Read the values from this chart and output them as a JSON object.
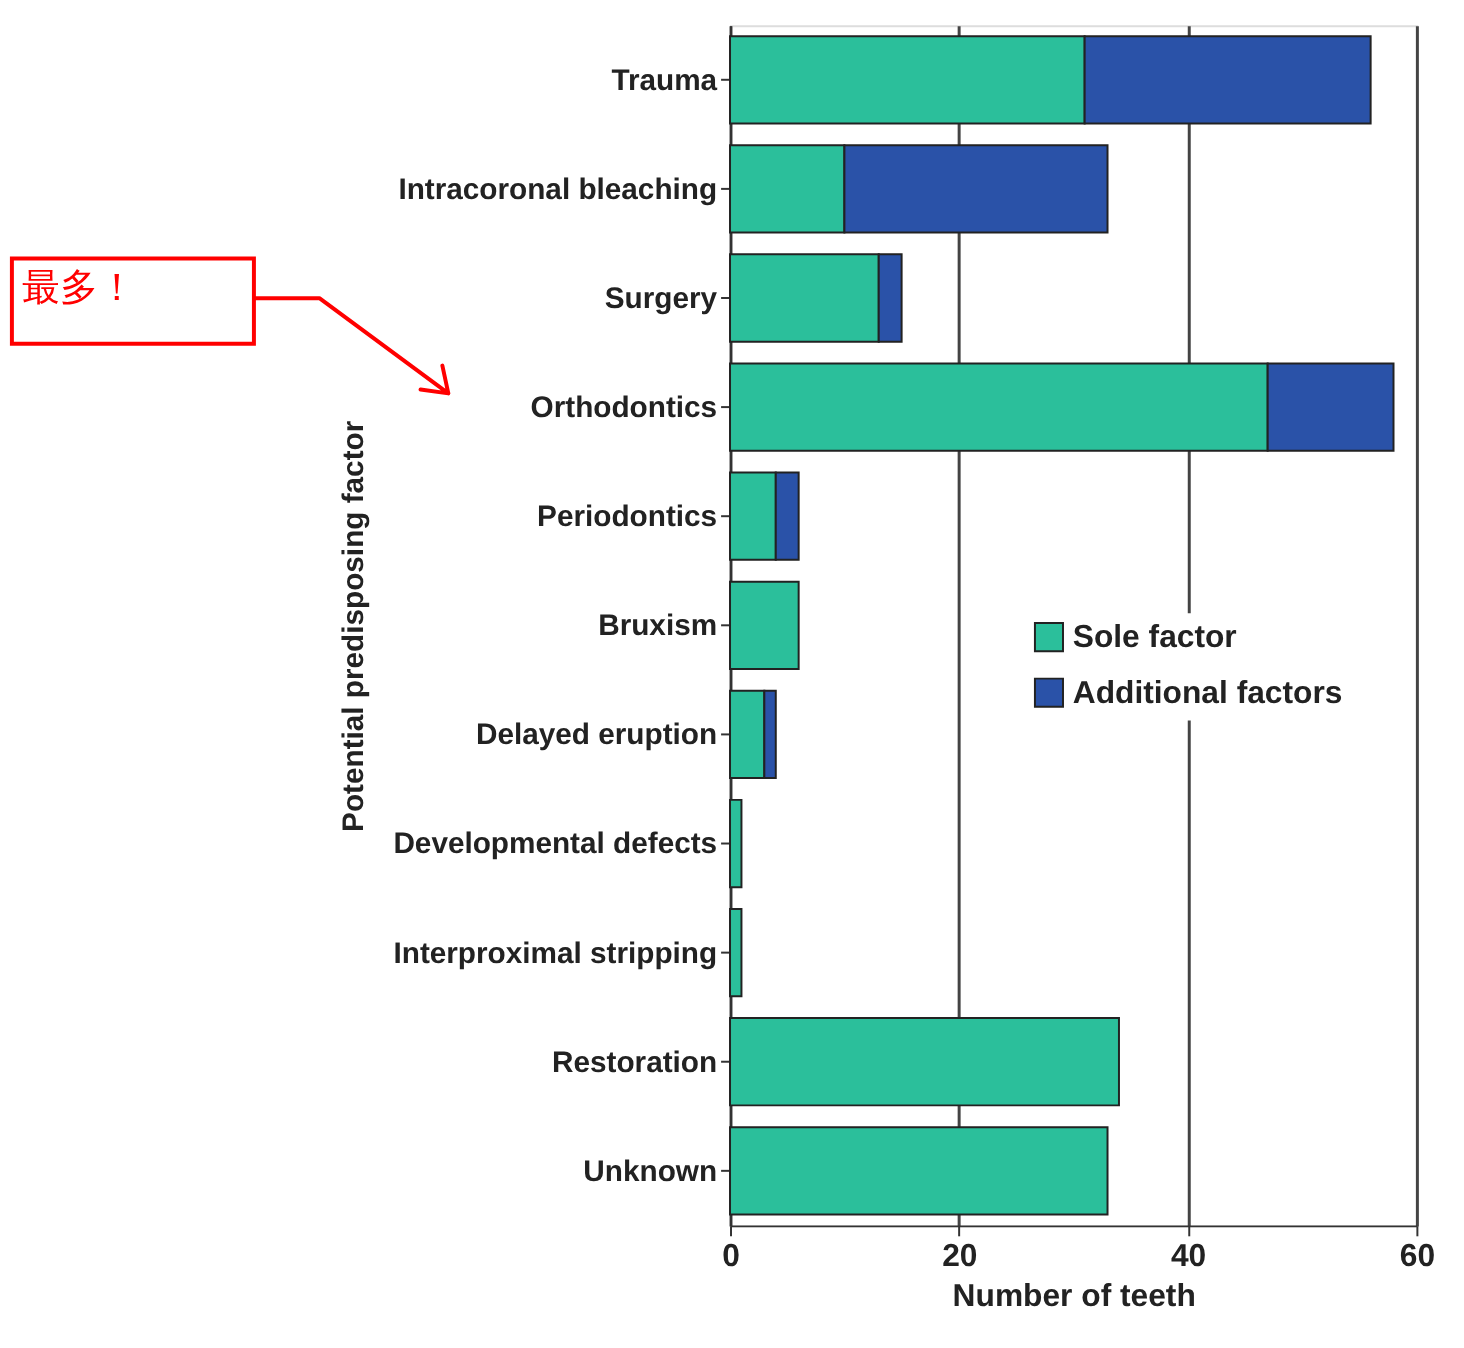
{
  "chart_data": {
    "type": "bar",
    "orientation": "horizontal",
    "stacked": true,
    "categories": [
      "Trauma",
      "Intracoronal bleaching",
      "Surgery",
      "Orthodontics",
      "Periodontics",
      "Bruxism",
      "Delayed eruption",
      "Developmental defects",
      "Interproximal stripping",
      "Restoration",
      "Unknown"
    ],
    "series": [
      {
        "name": "Sole factor",
        "color": "#2bbf9b",
        "values": [
          31,
          10,
          13,
          47,
          4,
          6,
          3,
          1,
          1,
          34,
          33
        ]
      },
      {
        "name": "Additional factors",
        "color": "#2a52a8",
        "values": [
          25,
          23,
          2,
          11,
          2,
          0,
          1,
          0,
          0,
          0,
          0
        ]
      }
    ],
    "xlabel": "Number of teeth",
    "ylabel": "Potential predisposing factor",
    "xlim": [
      0,
      60
    ],
    "xticks": [
      0,
      20,
      40,
      60
    ],
    "grid": "x",
    "legend": "right",
    "annotations": [
      "最多！"
    ]
  }
}
